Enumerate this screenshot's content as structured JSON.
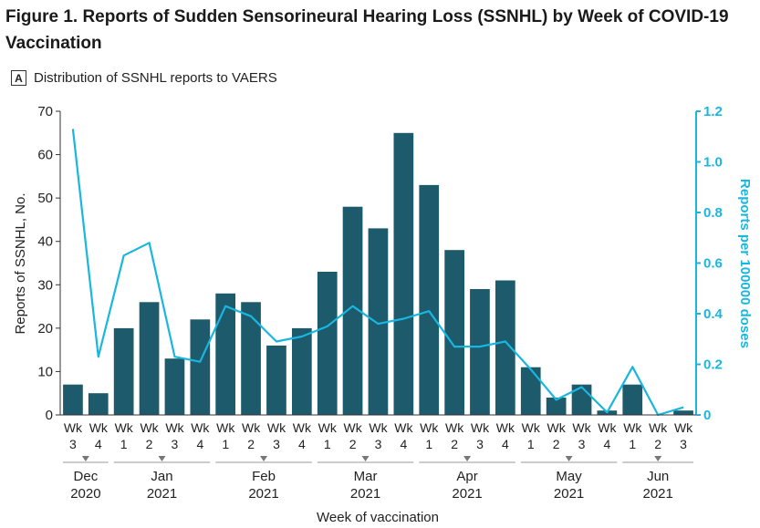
{
  "figure": {
    "title": "Figure 1.  Reports of Sudden Sensorineural Hearing Loss (SSNHL) by Week of COVID-19 Vaccination",
    "panel_letter": "A",
    "panel_title": "Distribution of SSNHL reports to VAERS"
  },
  "colors": {
    "bar": "#1d5a6b",
    "line": "#19b7df",
    "axis": "#333333"
  },
  "chart_data": {
    "type": "bar",
    "title": "Distribution of SSNHL reports to VAERS",
    "xlabel": "Week of vaccination",
    "ylabel": "Reports of SSNHL, No.",
    "y2label": "Reports per 100000 doses",
    "ylim": [
      0,
      70
    ],
    "y2lim": [
      0,
      1.2
    ],
    "yticks": [
      0,
      10,
      20,
      30,
      40,
      50,
      60,
      70
    ],
    "y2ticks": [
      "0",
      "0.2",
      "0.4",
      "0.6",
      "0.8",
      "1.0",
      "1.2"
    ],
    "categories": [
      {
        "wk": "Wk",
        "n": "3"
      },
      {
        "wk": "Wk",
        "n": "4"
      },
      {
        "wk": "Wk",
        "n": "1"
      },
      {
        "wk": "Wk",
        "n": "2"
      },
      {
        "wk": "Wk",
        "n": "3"
      },
      {
        "wk": "Wk",
        "n": "4"
      },
      {
        "wk": "Wk",
        "n": "1"
      },
      {
        "wk": "Wk",
        "n": "2"
      },
      {
        "wk": "Wk",
        "n": "3"
      },
      {
        "wk": "Wk",
        "n": "4"
      },
      {
        "wk": "Wk",
        "n": "1"
      },
      {
        "wk": "Wk",
        "n": "2"
      },
      {
        "wk": "Wk",
        "n": "3"
      },
      {
        "wk": "Wk",
        "n": "4"
      },
      {
        "wk": "Wk",
        "n": "1"
      },
      {
        "wk": "Wk",
        "n": "2"
      },
      {
        "wk": "Wk",
        "n": "3"
      },
      {
        "wk": "Wk",
        "n": "4"
      },
      {
        "wk": "Wk",
        "n": "1"
      },
      {
        "wk": "Wk",
        "n": "2"
      },
      {
        "wk": "Wk",
        "n": "3"
      },
      {
        "wk": "Wk",
        "n": "4"
      },
      {
        "wk": "Wk",
        "n": "1"
      },
      {
        "wk": "Wk",
        "n": "2"
      },
      {
        "wk": "Wk",
        "n": "3"
      }
    ],
    "months": [
      {
        "name": "Dec",
        "year": "2020",
        "start": 0,
        "end": 1
      },
      {
        "name": "Jan",
        "year": "2021",
        "start": 2,
        "end": 5
      },
      {
        "name": "Feb",
        "year": "2021",
        "start": 6,
        "end": 9
      },
      {
        "name": "Mar",
        "year": "2021",
        "start": 10,
        "end": 13
      },
      {
        "name": "Apr",
        "year": "2021",
        "start": 14,
        "end": 17
      },
      {
        "name": "May",
        "year": "2021",
        "start": 18,
        "end": 21
      },
      {
        "name": "Jun",
        "year": "2021",
        "start": 22,
        "end": 24
      }
    ],
    "series": [
      {
        "name": "Reports of SSNHL, No.",
        "type": "bar",
        "axis": "left",
        "values": [
          7,
          5,
          20,
          26,
          13,
          22,
          28,
          26,
          16,
          20,
          33,
          48,
          43,
          65,
          53,
          38,
          29,
          31,
          11,
          4,
          7,
          1,
          7,
          0,
          1
        ]
      },
      {
        "name": "Reports per 100000 doses",
        "type": "line",
        "axis": "right",
        "values": [
          1.13,
          0.23,
          0.63,
          0.68,
          0.23,
          0.21,
          0.43,
          0.39,
          0.29,
          0.31,
          0.35,
          0.43,
          0.36,
          0.38,
          0.41,
          0.27,
          0.27,
          0.29,
          0.18,
          0.06,
          0.11,
          0.01,
          0.19,
          0.0,
          0.03
        ]
      }
    ]
  }
}
